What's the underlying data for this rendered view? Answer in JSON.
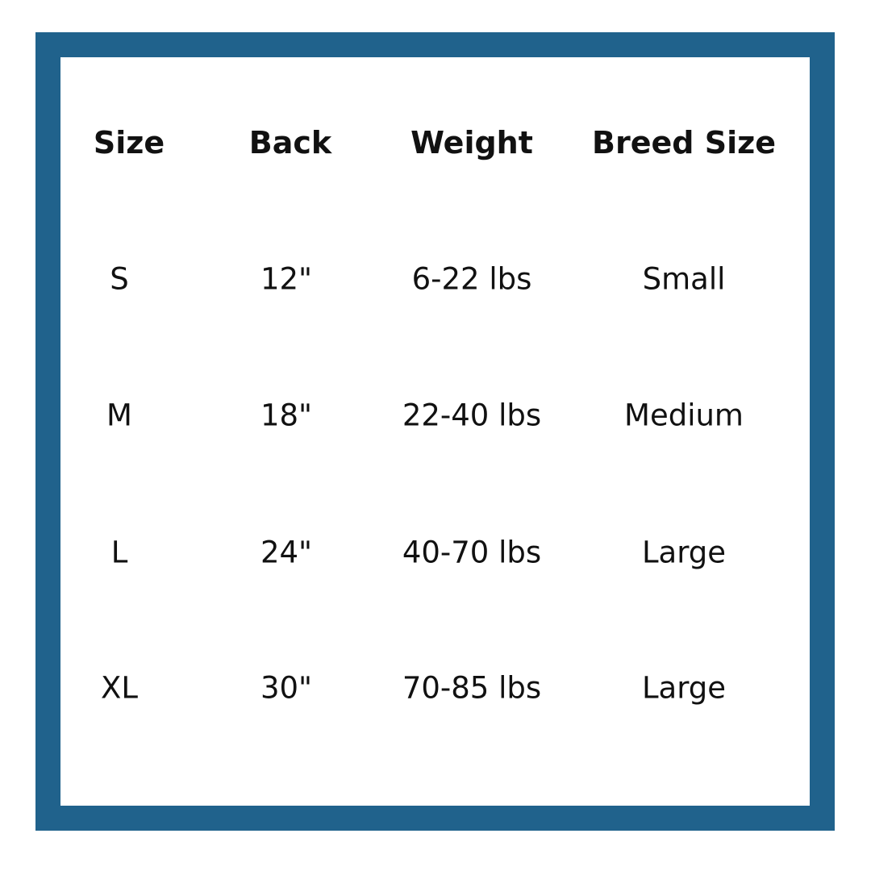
{
  "colors": {
    "border": "#20628c",
    "text": "#111111"
  },
  "headers": [
    "Size",
    "Back",
    "Weight",
    "Breed Size"
  ],
  "rows": [
    [
      "S",
      "12\"",
      "6-22 lbs",
      "Small"
    ],
    [
      "M",
      "18\"",
      "22-40 lbs",
      "Medium"
    ],
    [
      "L",
      "24\"",
      "40-70 lbs",
      "Large"
    ],
    [
      "XL",
      "30\"",
      "70-85 lbs",
      "Large"
    ]
  ]
}
